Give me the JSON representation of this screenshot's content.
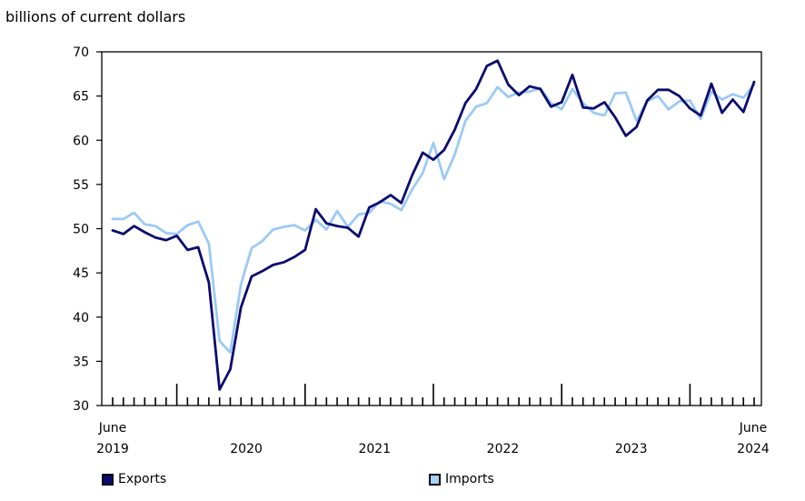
{
  "chart_data": {
    "type": "line",
    "title": "",
    "ylabel": "billions of current dollars",
    "xlabel": "",
    "ylim": [
      30,
      70
    ],
    "yticks": [
      30,
      35,
      40,
      45,
      50,
      55,
      60,
      65,
      70
    ],
    "x_start": "June 2019",
    "x_end": "June 2024",
    "x_labels": [
      {
        "month": "June",
        "year": "2019"
      },
      {
        "month": "",
        "year": "2020"
      },
      {
        "month": "",
        "year": "2021"
      },
      {
        "month": "",
        "year": "2022"
      },
      {
        "month": "",
        "year": "2023"
      },
      {
        "month": "June",
        "year": "2024"
      }
    ],
    "legend_position": "bottom",
    "grid": false,
    "series": [
      {
        "name": "Exports",
        "color": "#0b0b6f",
        "fill": "#0b0b6f",
        "values": [
          49.8,
          49.4,
          50.3,
          49.6,
          49.0,
          48.7,
          49.2,
          47.6,
          47.9,
          43.9,
          31.8,
          34.1,
          41.1,
          44.6,
          45.2,
          45.9,
          46.2,
          46.8,
          47.6,
          52.2,
          50.6,
          50.3,
          50.1,
          49.1,
          52.4,
          53.0,
          53.8,
          52.9,
          56.0,
          58.6,
          57.8,
          58.9,
          61.2,
          64.2,
          65.8,
          68.4,
          69.0,
          66.3,
          65.1,
          66.1,
          65.8,
          63.8,
          64.3,
          67.4,
          63.7,
          63.6,
          64.3,
          62.6,
          60.5,
          61.5,
          64.5,
          65.7,
          65.7,
          65.0,
          63.6,
          62.8,
          66.4,
          63.1,
          64.6,
          63.2,
          66.6
        ]
      },
      {
        "name": "Imports",
        "color": "#9ccaf5",
        "fill": "#a6d2f7",
        "values": [
          51.1,
          51.1,
          51.8,
          50.5,
          50.3,
          49.5,
          49.4,
          50.4,
          50.8,
          48.3,
          37.3,
          36.0,
          43.7,
          47.8,
          48.6,
          49.9,
          50.2,
          50.4,
          49.8,
          51.0,
          49.9,
          52.0,
          50.2,
          51.6,
          51.8,
          53.1,
          52.8,
          52.1,
          54.4,
          56.3,
          59.7,
          55.6,
          58.4,
          62.2,
          63.8,
          64.2,
          66.0,
          64.9,
          65.4,
          65.5,
          65.9,
          64.2,
          63.5,
          65.8,
          64.2,
          63.1,
          62.8,
          65.3,
          65.4,
          62.2,
          64.4,
          65.0,
          63.5,
          64.4,
          64.5,
          62.4,
          65.5,
          64.6,
          65.2,
          64.8,
          66.3
        ]
      }
    ]
  }
}
